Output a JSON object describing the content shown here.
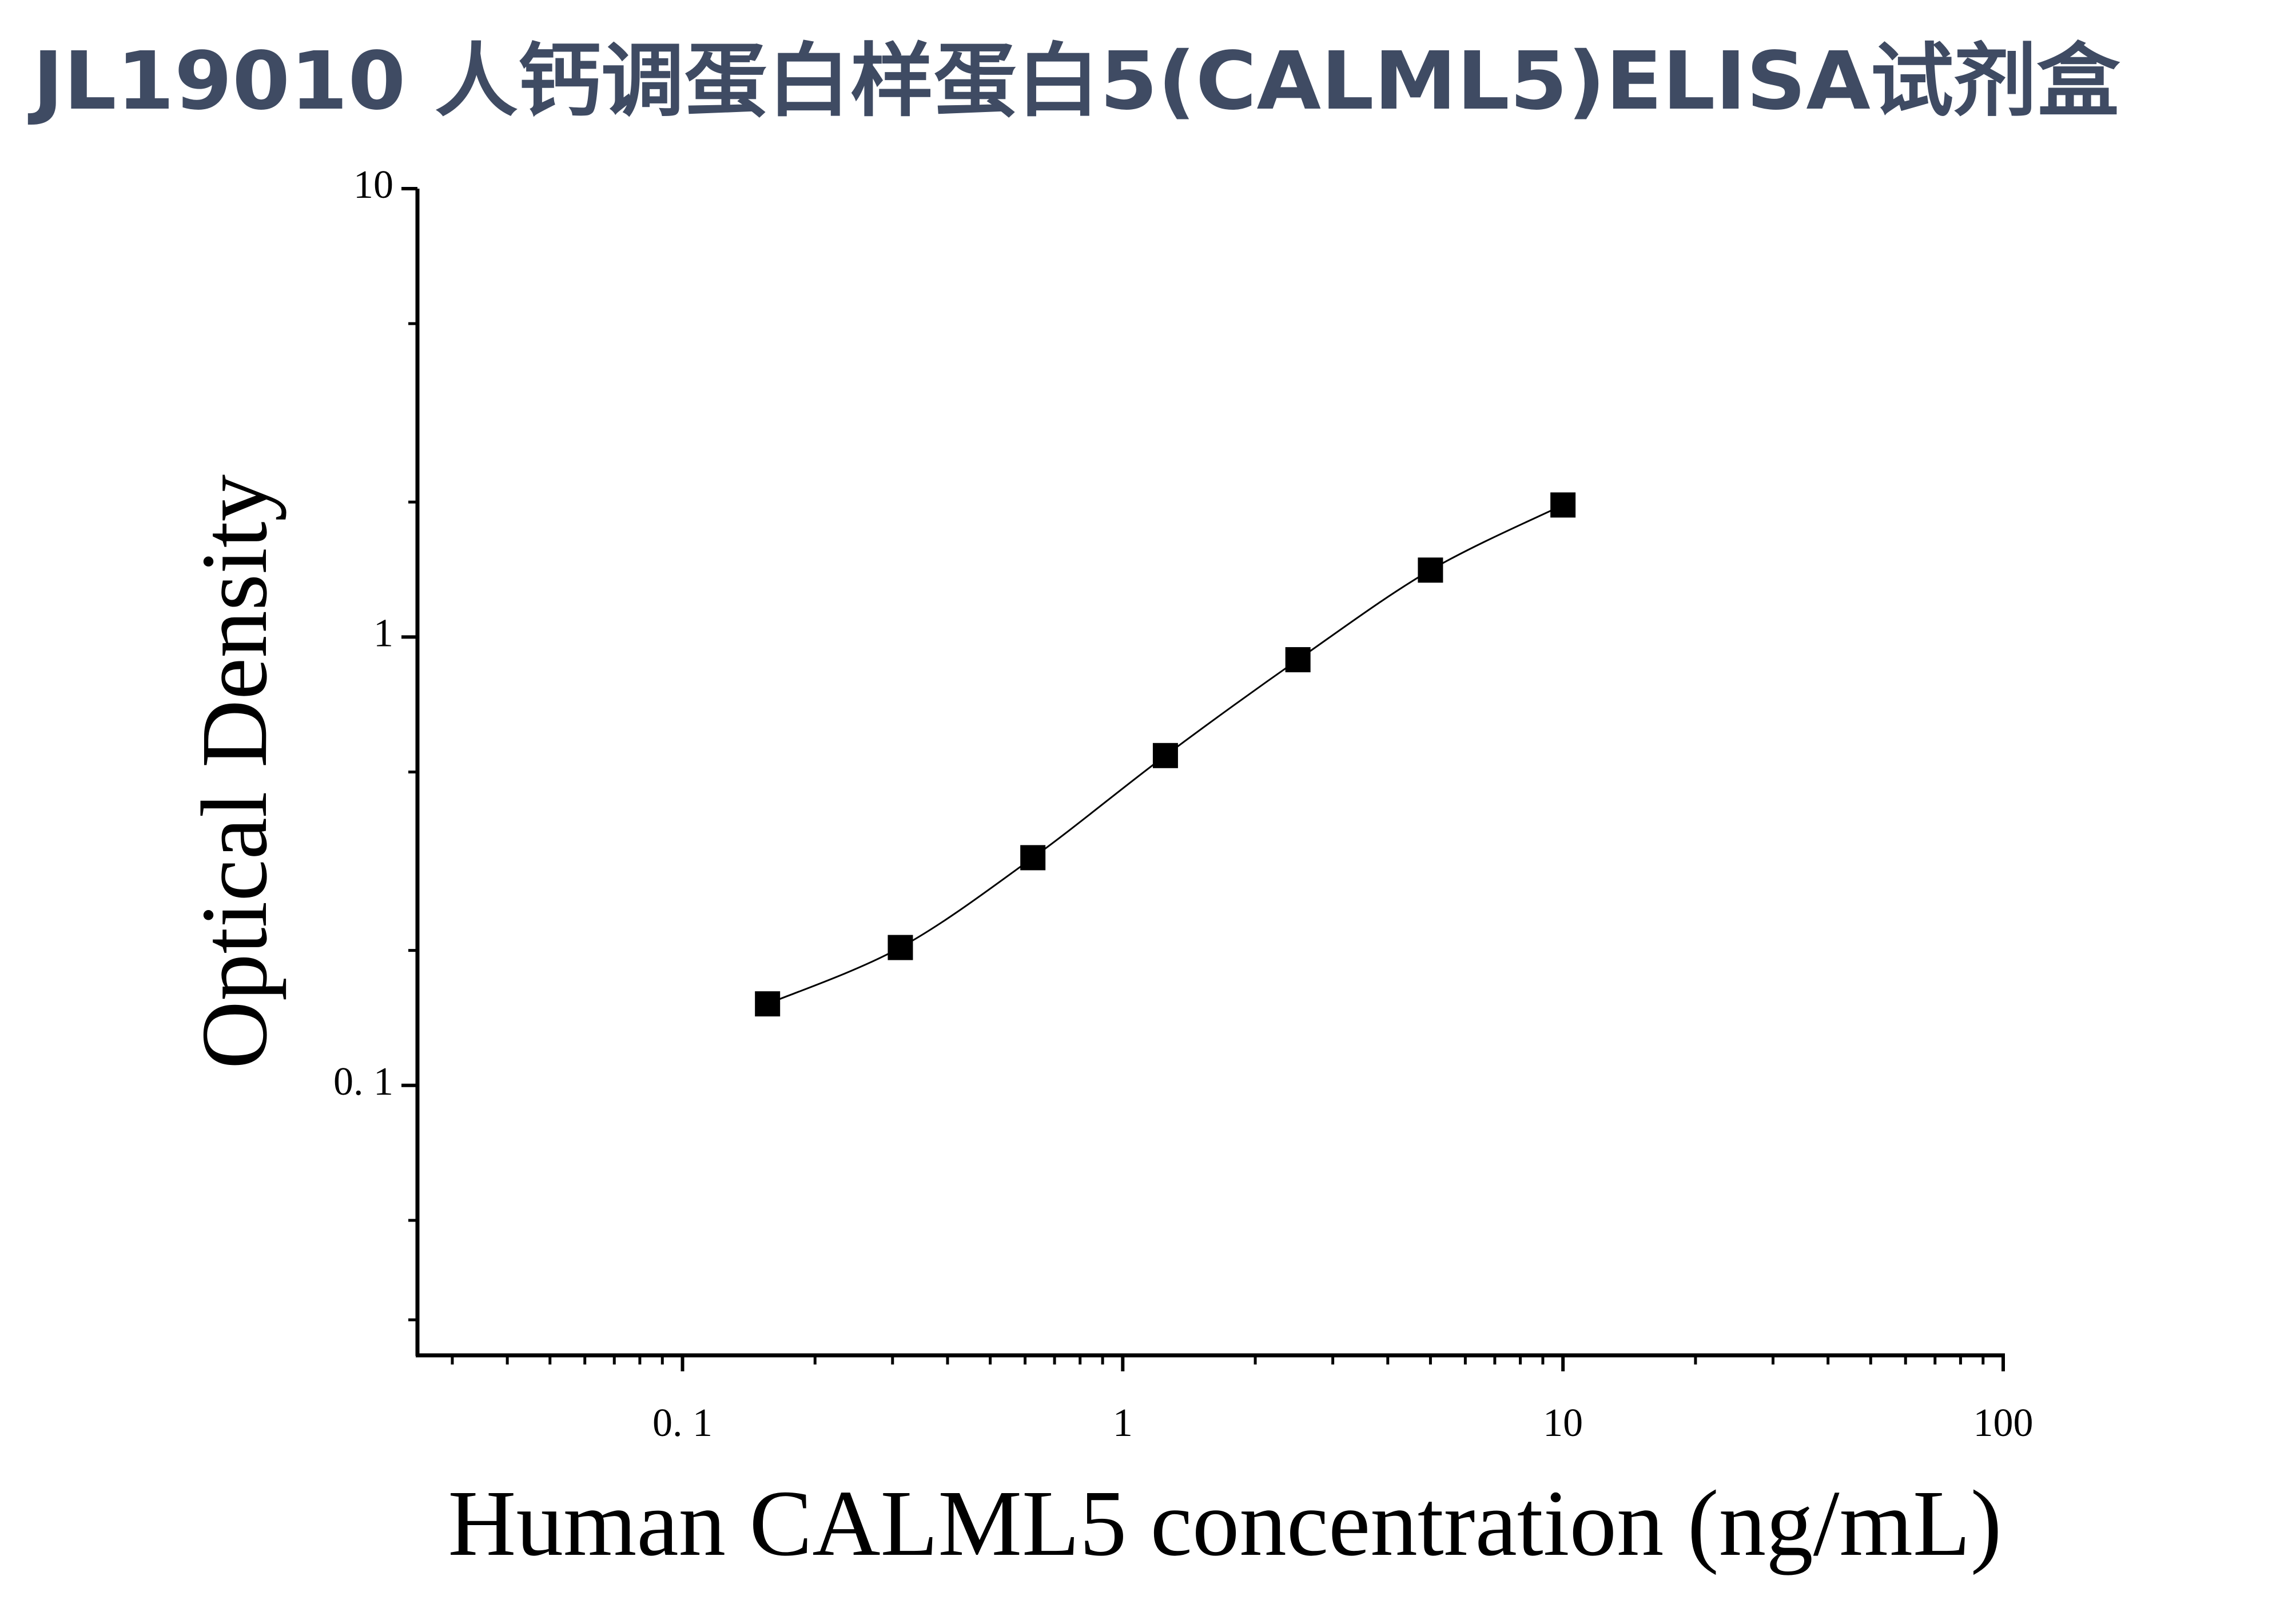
{
  "chart_data": {
    "type": "line",
    "title": "JL19010 人钙调蛋白样蛋白5(CALML5)ELISA试剂盒",
    "x_label": "Human CALML5 concentration (ng/mL)",
    "y_label": "Optical Density",
    "x": [
      0.156,
      0.3125,
      0.625,
      1.25,
      2.5,
      5,
      10
    ],
    "series": [
      {
        "color": "#000000",
        "values": [
          0.152,
          0.203,
          0.322,
          0.544,
          0.89,
          1.41,
          1.97
        ]
      }
    ],
    "xlim": [
      0.025,
      100
    ],
    "ylim": [
      0.025,
      10
    ],
    "xscale": "log",
    "yscale": "log",
    "xticks": [
      {
        "value": 0.1,
        "label": "0. 1"
      },
      1,
      10,
      100
    ],
    "yticks": [
      {
        "value": 0.1,
        "label": "0. 1"
      },
      1,
      10
    ],
    "xminorticks": [
      0.03,
      0.04,
      0.05,
      0.06,
      0.07,
      0.08,
      0.09,
      0.2,
      0.3,
      0.4,
      0.5,
      0.6,
      0.7,
      0.8,
      0.9,
      2,
      3,
      4,
      5,
      6,
      7,
      8,
      9,
      20,
      30,
      40,
      50,
      60,
      70,
      80,
      90
    ],
    "yminorticks": [
      0.03,
      0.05,
      0.2,
      0.5,
      2,
      5
    ],
    "grid": false
  }
}
